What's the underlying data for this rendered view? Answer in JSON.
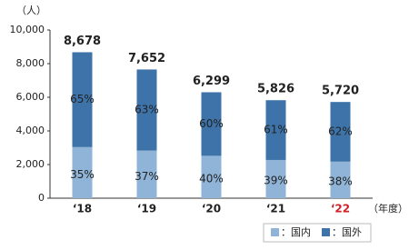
{
  "chart_data": {
    "type": "bar",
    "stacked": true,
    "y_unit_label": "（人）",
    "x_unit_label": "（年度）",
    "categories": [
      "‘18",
      "‘19",
      "‘20",
      "‘21",
      "‘22"
    ],
    "category_label_colors": [
      "#222222",
      "#222222",
      "#222222",
      "#222222",
      "#d0202a"
    ],
    "totals": {
      "values": [
        8678,
        7652,
        6299,
        5826,
        5720
      ],
      "value_labels": [
        "8,678",
        "7,652",
        "6,299",
        "5,826",
        "5,720"
      ]
    },
    "series": [
      {
        "name": "：国内",
        "color": "#8fb4d8",
        "values": [
          35,
          37,
          40,
          39,
          38
        ],
        "value_labels": [
          "35%",
          "37%",
          "40%",
          "39%",
          "38%"
        ]
      },
      {
        "name": "：国外",
        "color": "#3d73a8",
        "values": [
          65,
          63,
          60,
          61,
          62
        ],
        "value_labels": [
          "65%",
          "63%",
          "60%",
          "61%",
          "62%"
        ]
      }
    ],
    "ylim": [
      0,
      10000
    ],
    "yticks": [
      0,
      {
        "value": 2000,
        "label": "2,000"
      },
      {
        "value": 4000,
        "label": "4,000"
      },
      {
        "value": 6000,
        "label": "6,000"
      },
      {
        "value": 8000,
        "label": "8,000"
      },
      {
        "value": 10000,
        "label": "10,000"
      }
    ],
    "grid": false,
    "legend": "bottom-right"
  }
}
